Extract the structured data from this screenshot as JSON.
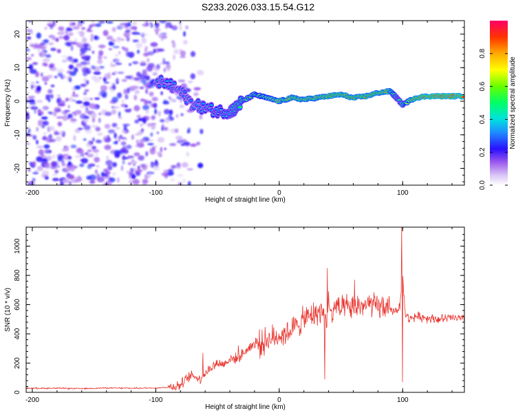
{
  "title": "S233.2026.033.15.54.G12",
  "colorbar": {
    "label": "Normalized spectral amplitude",
    "ticks": [
      "0.0",
      "0.2",
      "0.4",
      "0.6",
      "0.8"
    ],
    "tick_values": [
      0.0,
      0.2,
      0.4,
      0.6,
      0.8
    ]
  },
  "chart_data": [
    {
      "type": "heatmap",
      "title": "S233.2026.033.15.54.G12",
      "xlabel": "Height of straight line (km)",
      "ylabel": "Frequency (Hz)",
      "xlim": [
        -205,
        150
      ],
      "ylim": [
        -25,
        24
      ],
      "xticks": [
        -200,
        -100,
        0,
        100
      ],
      "xtick_labels": [
        "-200",
        "-100",
        "0",
        "100"
      ],
      "yticks": [
        -20,
        -10,
        0,
        10,
        20
      ],
      "ytick_labels": [
        "-20",
        "-10",
        "0",
        "10",
        "20"
      ],
      "colormap_range": [
        0,
        1
      ],
      "ridge": {
        "x": [
          -100,
          -90,
          -80,
          -70,
          -60,
          -50,
          -40,
          -35,
          -30,
          -20,
          -10,
          0,
          10,
          20,
          30,
          40,
          50,
          60,
          70,
          80,
          90,
          95,
          100,
          110,
          120,
          130,
          140,
          150
        ],
        "freq": [
          6,
          5,
          3,
          -1,
          -2,
          -3,
          -3,
          -2,
          0,
          2,
          1,
          0,
          1,
          0.5,
          1,
          1.5,
          2,
          1,
          1.5,
          2.5,
          3,
          1,
          -1,
          1,
          1.5,
          1.5,
          1.5,
          1.5
        ],
        "amplitude": [
          0.3,
          0.35,
          0.3,
          0.3,
          0.35,
          0.35,
          0.4,
          0.45,
          0.55,
          0.6,
          0.65,
          0.75,
          0.8,
          0.8,
          0.8,
          0.85,
          0.85,
          0.85,
          0.85,
          0.85,
          0.8,
          0.5,
          0.5,
          0.9,
          0.95,
          0.95,
          0.95,
          0.95
        ]
      },
      "noise_region_x": [
        -205,
        -80
      ],
      "noise_amplitude": 0.2
    },
    {
      "type": "line",
      "xlabel": "Height of straight line (km)",
      "ylabel": "SNR (10 * v/v)",
      "xlim": [
        -205,
        150
      ],
      "ylim": [
        0,
        1130
      ],
      "xticks": [
        -200,
        -100,
        0,
        100
      ],
      "xtick_labels": [
        "-200",
        "-100",
        "0",
        "100"
      ],
      "yticks": [
        0,
        200,
        400,
        600,
        800,
        1000
      ],
      "ytick_labels": [
        "0",
        "200",
        "400",
        "600",
        "800",
        "1000"
      ],
      "color": "#e8352e",
      "series": [
        {
          "name": "SNR",
          "x": [
            -205,
            -180,
            -160,
            -140,
            -120,
            -100,
            -90,
            -80,
            -75,
            -70,
            -65,
            -60,
            -55,
            -50,
            -45,
            -40,
            -35,
            -30,
            -25,
            -20,
            -15,
            -10,
            -5,
            0,
            5,
            10,
            15,
            20,
            25,
            30,
            35,
            38,
            40,
            43,
            45,
            50,
            55,
            60,
            65,
            70,
            75,
            80,
            85,
            90,
            95,
            98,
            100,
            102,
            105,
            110,
            120,
            130,
            140,
            150
          ],
          "values": [
            28,
            28,
            25,
            30,
            28,
            30,
            35,
            50,
            90,
            120,
            90,
            130,
            170,
            200,
            190,
            230,
            230,
            260,
            300,
            340,
            330,
            360,
            370,
            390,
            400,
            430,
            460,
            500,
            520,
            540,
            560,
            480,
            620,
            500,
            600,
            560,
            580,
            570,
            600,
            590,
            600,
            580,
            590,
            560,
            560,
            600,
            800,
            540,
            500,
            520,
            510,
            500,
            510,
            500
          ]
        }
      ],
      "spikes": [
        {
          "x": 39,
          "value": 850
        },
        {
          "x": 37,
          "value": 90
        },
        {
          "x": 61,
          "value": 770
        },
        {
          "x": 99,
          "value": 1130
        },
        {
          "x": 100,
          "value": 70
        },
        {
          "x": -62,
          "value": 270
        },
        {
          "x": -33,
          "value": 320
        }
      ]
    }
  ]
}
